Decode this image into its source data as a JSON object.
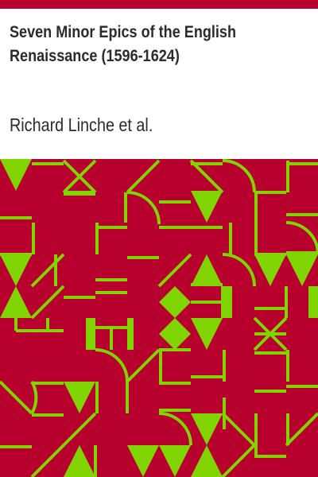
{
  "book": {
    "title": "Seven Minor Epics of the English Renaissance (1596-1624)",
    "author": "Richard Linche et al."
  },
  "colors": {
    "band": "#b8002e",
    "pattern_bg": "#b8002e",
    "pattern_fg": "#80d400",
    "text": "#2b2b2b"
  }
}
